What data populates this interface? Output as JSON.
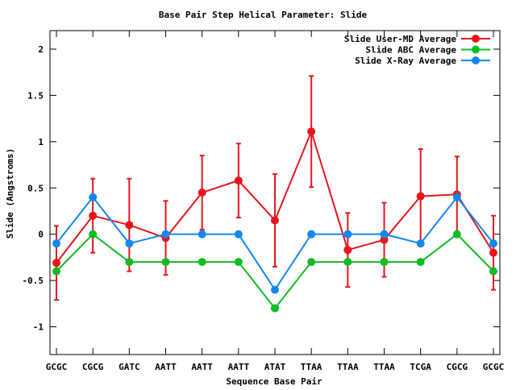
{
  "chart_data": {
    "type": "line",
    "title": "Base Pair Step Helical Parameter: Slide",
    "xlabel": "Sequence Base Pair",
    "ylabel": "Slide (Angstroms)",
    "ylim": [
      -1.3,
      2.2
    ],
    "yticks": [
      -1,
      -0.5,
      0,
      0.5,
      1,
      1.5,
      2
    ],
    "ytick_labels": [
      "-1",
      "-0.5",
      "0",
      "0.5",
      "1",
      "1.5",
      "2"
    ],
    "categories": [
      "GCGC",
      "CGCG",
      "GATC",
      "AATT",
      "AATT",
      "AATT",
      "ATAT",
      "TTAA",
      "TTAA",
      "TTAA",
      "TCGA",
      "CGCG",
      "GCGC"
    ],
    "legend_position": "top-right",
    "grid": false,
    "series": [
      {
        "name": "Slide User-MD Average",
        "color": "#e8151b",
        "values": [
          -0.31,
          0.2,
          0.1,
          -0.04,
          0.45,
          0.58,
          0.15,
          1.11,
          -0.17,
          -0.06,
          0.41,
          0.43,
          -0.2
        ],
        "error": [
          0.4,
          0.4,
          0.5,
          0.4,
          0.4,
          0.4,
          0.5,
          0.6,
          0.4,
          0.4,
          0.51,
          0.41,
          0.4
        ]
      },
      {
        "name": "Slide ABC Average",
        "color": "#11bb22",
        "values": [
          -0.4,
          0.0,
          -0.3,
          -0.3,
          -0.3,
          -0.3,
          -0.8,
          -0.3,
          -0.3,
          -0.3,
          -0.3,
          0.0,
          -0.4
        ]
      },
      {
        "name": "Slide X-Ray Average",
        "color": "#1188ee",
        "values": [
          -0.1,
          0.4,
          -0.1,
          0.0,
          0.0,
          0.0,
          -0.6,
          0.0,
          0.0,
          0.0,
          -0.1,
          0.4,
          -0.1
        ]
      }
    ]
  }
}
